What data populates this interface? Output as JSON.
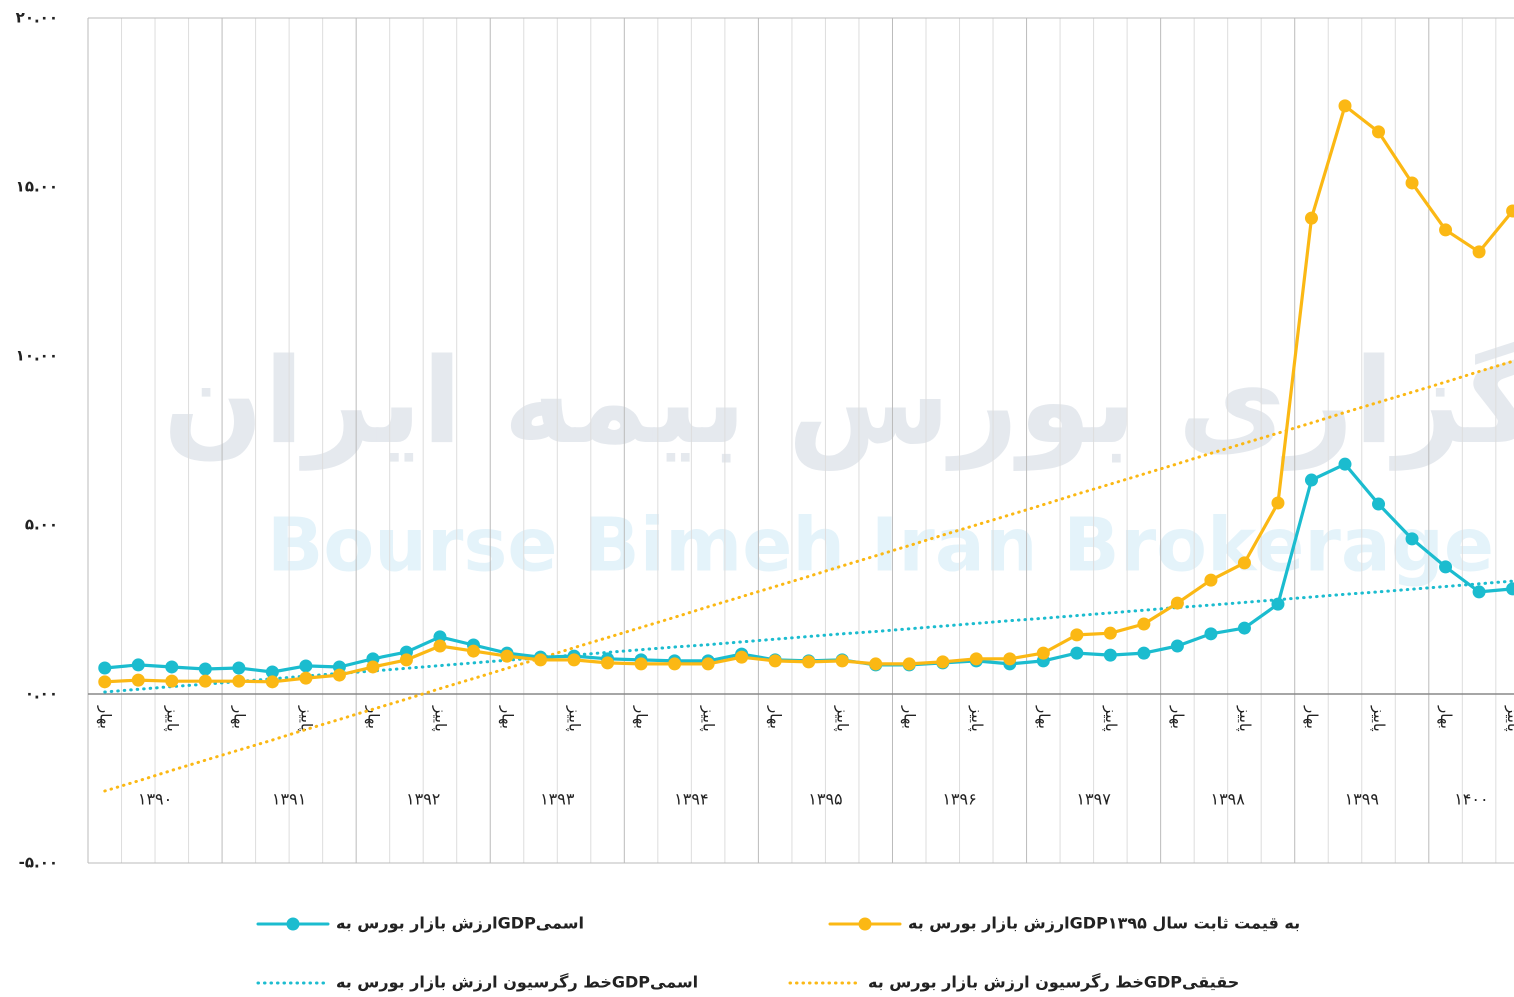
{
  "chart_data": {
    "type": "line",
    "watermark": [
      "کارگزاری بورس بیمه ایران",
      "Bourse Bimeh Iran Brokerage Co."
    ],
    "categories": [
      "بهار",
      null,
      "پاییز",
      null,
      "بهار",
      null,
      "پاییز",
      null,
      "بهار",
      null,
      "پاییز",
      null,
      "بهار",
      null,
      "پاییز",
      null,
      "بهار",
      null,
      "پاییز",
      null,
      "بهار",
      null,
      "پاییز",
      null,
      "بهار",
      null,
      "پاییز",
      null,
      "بهار",
      null,
      "پاییز",
      null,
      "بهار",
      null,
      "پاییز",
      null,
      "بهار",
      null,
      "پاییز",
      null,
      "بهار",
      null,
      "پاییز"
    ],
    "groups": [
      "۱۳۹۰",
      "۱۳۹۱",
      "۱۳۹۲",
      "۱۳۹۳",
      "۱۳۹۴",
      "۱۳۹۵",
      "۱۳۹۶",
      "۱۳۹۷",
      "۱۳۹۸",
      "۱۳۹۹",
      "۱۴۰۰"
    ],
    "series": [
      {
        "name": "ارزش بازار بورس بهGDPاسمی",
        "color": "#1bbccf",
        "style": "solid",
        "marker": true,
        "values": [
          0.77,
          0.86,
          0.8,
          0.74,
          0.77,
          0.65,
          0.83,
          0.8,
          1.04,
          1.24,
          1.69,
          1.45,
          1.21,
          1.09,
          1.12,
          1.04,
          1.01,
          0.98,
          0.98,
          1.18,
          1.01,
          0.98,
          1.01,
          0.86,
          0.86,
          0.92,
          0.98,
          0.89,
          0.98,
          1.21,
          1.15,
          1.21,
          1.42,
          1.78,
          1.95,
          2.66,
          6.33,
          6.8,
          5.62,
          4.59,
          3.76,
          3.02,
          3.11
        ]
      },
      {
        "name": "ارزش بازار بورس بهGDPبه قیمت ثابت سال ۱۳۹۵",
        "color": "#fbb814",
        "style": "solid",
        "marker": true,
        "values": [
          0.36,
          0.41,
          0.38,
          0.38,
          0.38,
          0.36,
          0.47,
          0.56,
          0.8,
          1.01,
          1.42,
          1.27,
          1.12,
          1.01,
          1.01,
          0.92,
          0.89,
          0.89,
          0.89,
          1.09,
          0.98,
          0.95,
          0.98,
          0.89,
          0.89,
          0.95,
          1.04,
          1.04,
          1.21,
          1.75,
          1.8,
          2.07,
          2.69,
          3.37,
          3.88,
          5.65,
          14.08,
          17.4,
          16.63,
          15.12,
          13.73,
          13.08,
          14.29
        ]
      },
      {
        "name": "خط رگرسیون ارزش بازار بورس بهGDPاسمی",
        "color": "#1bbccf",
        "style": "dotted",
        "marker": false,
        "values": [
          0.06,
          0.14,
          0.22,
          0.29,
          0.37,
          0.45,
          0.53,
          0.61,
          0.68,
          0.76,
          0.84,
          0.92,
          1.0,
          1.07,
          1.15,
          1.23,
          1.31,
          1.39,
          1.46,
          1.54,
          1.62,
          1.7,
          1.78,
          1.85,
          1.93,
          2.01,
          2.09,
          2.17,
          2.24,
          2.32,
          2.4,
          2.48,
          2.56,
          2.63,
          2.71,
          2.79,
          2.87,
          2.95,
          3.02,
          3.1,
          3.18,
          3.26,
          3.34
        ]
      },
      {
        "name": "خط رگرسیون ارزش بازار بورس بهGDPحقیقی",
        "color": "#fbb814",
        "style": "dotted",
        "marker": false,
        "values": [
          -2.87,
          -2.57,
          -2.26,
          -1.96,
          -1.66,
          -1.36,
          -1.05,
          -0.75,
          -0.45,
          -0.15,
          0.16,
          0.46,
          0.76,
          1.06,
          1.37,
          1.67,
          1.97,
          2.27,
          2.58,
          2.88,
          3.18,
          3.48,
          3.79,
          4.09,
          4.39,
          4.7,
          5.0,
          5.3,
          5.6,
          5.91,
          6.21,
          6.51,
          6.81,
          7.12,
          7.42,
          7.72,
          8.02,
          8.33,
          8.63,
          8.93,
          9.23,
          9.54,
          9.84
        ]
      }
    ],
    "ylim": [
      -5,
      20
    ],
    "yticks": [
      {
        "value": -5,
        "label": "-۵.۰۰"
      },
      {
        "value": 0,
        "label": "۰.۰۰"
      },
      {
        "value": 5,
        "label": "۵.۰۰"
      },
      {
        "value": 10,
        "label": "۱۰.۰۰"
      },
      {
        "value": 15,
        "label": "۱۵.۰۰"
      },
      {
        "value": 20,
        "label": "۲۰.۰۰"
      }
    ],
    "grid": "x",
    "legend": "bottom"
  }
}
